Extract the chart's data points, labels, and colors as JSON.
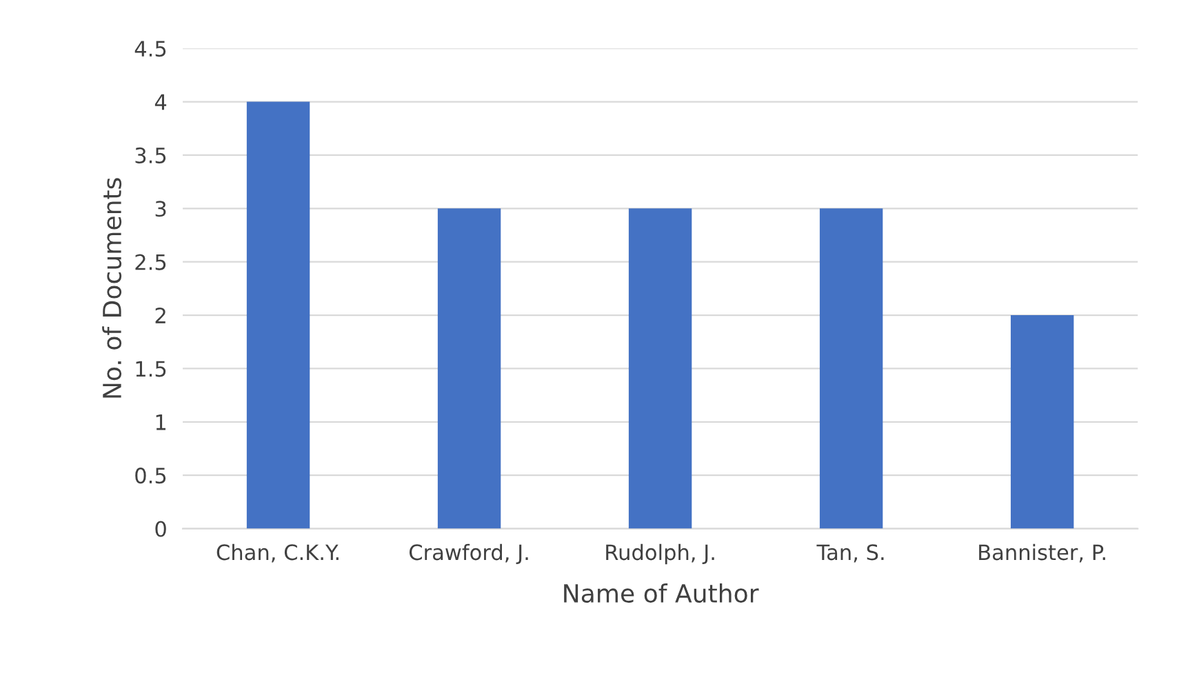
{
  "chart_data": {
    "type": "bar",
    "xlabel": "Name of Author",
    "ylabel": "No. of Documents",
    "categories": [
      "Chan, C.K.Y.",
      "Crawford, J.",
      "Rudolph, J.",
      "Tan, S.",
      "Bannister, P."
    ],
    "values": [
      4,
      3,
      3,
      3,
      2
    ],
    "color": "#4472c4",
    "ylim": [
      0,
      4.5
    ],
    "yticks": [
      0,
      0.5,
      1,
      1.5,
      2,
      2.5,
      3,
      3.5,
      4,
      4.5
    ],
    "grid": "y",
    "legend": false
  }
}
